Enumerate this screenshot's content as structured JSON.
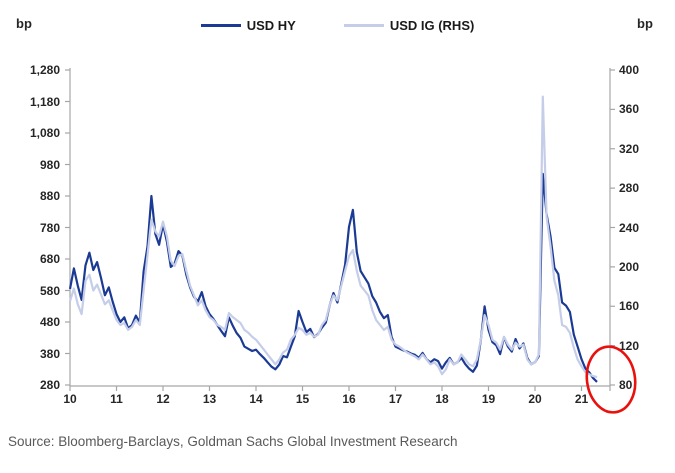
{
  "figure": {
    "left_axis_unit": "bp",
    "right_axis_unit": "bp",
    "source": "Source: Bloomberg-Barclays, Goldman Sachs Global Investment Research"
  },
  "chart_data": {
    "type": "line",
    "title": "",
    "xlabel": "",
    "ylabel_left": "bp",
    "ylabel_right": "bp",
    "grid": false,
    "legend_position": "top-center",
    "x_frequency": "monthly",
    "x_start_year": 2010,
    "x_end_year_fraction": 2021.33,
    "x_axis": {
      "tick_labels": [
        "10",
        "11",
        "12",
        "13",
        "14",
        "15",
        "16",
        "17",
        "18",
        "19",
        "20",
        "21"
      ],
      "tick_years": [
        2010,
        2011,
        2012,
        2013,
        2014,
        2015,
        2016,
        2017,
        2018,
        2019,
        2020,
        2021
      ],
      "axis_end_year": 2021.6
    },
    "left_axis": {
      "unit": "bp",
      "min": 280,
      "max": 1280,
      "step": 100,
      "tick_labels": [
        "1,280",
        "1,180",
        "1,080",
        "980",
        "880",
        "780",
        "680",
        "580",
        "480",
        "380",
        "280"
      ]
    },
    "right_axis": {
      "unit": "bp",
      "min": 80,
      "max": 400,
      "step": 40,
      "tick_labels": [
        "400",
        "360",
        "320",
        "280",
        "240",
        "200",
        "160",
        "120",
        "80"
      ]
    },
    "series": [
      {
        "name": "USD HY",
        "axis": "left",
        "color": "#1b3a94",
        "values": [
          585,
          650,
          595,
          550,
          660,
          700,
          645,
          670,
          620,
          565,
          590,
          545,
          505,
          480,
          495,
          460,
          470,
          500,
          478,
          640,
          720,
          880,
          760,
          725,
          790,
          735,
          655,
          665,
          705,
          690,
          630,
          590,
          560,
          545,
          575,
          530,
          505,
          490,
          470,
          452,
          435,
          495,
          468,
          445,
          430,
          402,
          395,
          388,
          392,
          378,
          366,
          352,
          338,
          330,
          345,
          372,
          368,
          402,
          435,
          515,
          480,
          448,
          458,
          432,
          442,
          462,
          478,
          532,
          572,
          542,
          602,
          662,
          782,
          836,
          702,
          642,
          622,
          602,
          562,
          542,
          512,
          492,
          502,
          432,
          402,
          396,
          390,
          386,
          380,
          376,
          366,
          382,
          362,
          352,
          362,
          356,
          332,
          352,
          366,
          346,
          352,
          366,
          346,
          332,
          322,
          342,
          422,
          530,
          455,
          416,
          406,
          378,
          432,
          402,
          386,
          426,
          396,
          412,
          366,
          346,
          352,
          372,
          950,
          822,
          752,
          652,
          632,
          542,
          532,
          512,
          440,
          402,
          362,
          332,
          320,
          302,
          290
        ]
      },
      {
        "name": "USD IG (RHS)",
        "axis": "right",
        "color": "#c5cde9",
        "values": [
          165,
          178,
          162,
          152,
          186,
          192,
          176,
          182,
          172,
          162,
          166,
          156,
          146,
          141,
          143,
          136,
          139,
          146,
          141,
          176,
          212,
          248,
          236,
          231,
          246,
          231,
          206,
          201,
          211,
          213,
          196,
          181,
          171,
          161,
          166,
          156,
          149,
          146,
          141,
          139,
          136,
          153,
          149,
          146,
          143,
          136,
          133,
          129,
          126,
          121,
          116,
          111,
          106,
          101,
          106,
          113,
          116,
          126,
          131,
          138,
          136,
          131,
          133,
          129,
          131,
          141,
          146,
          161,
          171,
          166,
          181,
          196,
          211,
          217,
          196,
          181,
          176,
          171,
          156,
          146,
          141,
          136,
          139,
          126,
          121,
          119,
          116,
          113,
          111,
          109,
          106,
          111,
          106,
          101,
          103,
          99,
          91,
          96,
          106,
          101,
          103,
          111,
          106,
          101,
          99,
          106,
          126,
          151,
          141,
          126,
          123,
          116,
          129,
          121,
          116,
          123,
          119,
          121,
          106,
          101,
          103,
          111,
          373,
          251,
          221,
          186,
          171,
          141,
          139,
          133,
          118,
          106,
          99,
          93,
          91,
          89,
          88
        ]
      }
    ],
    "annotation": {
      "shape": "ellipse",
      "color": "#e8110d",
      "meaning": "hand-drawn red circle highlighting the latest (mid-2021) data points near multi-year lows"
    },
    "axis_color": "#a6a6a6"
  }
}
